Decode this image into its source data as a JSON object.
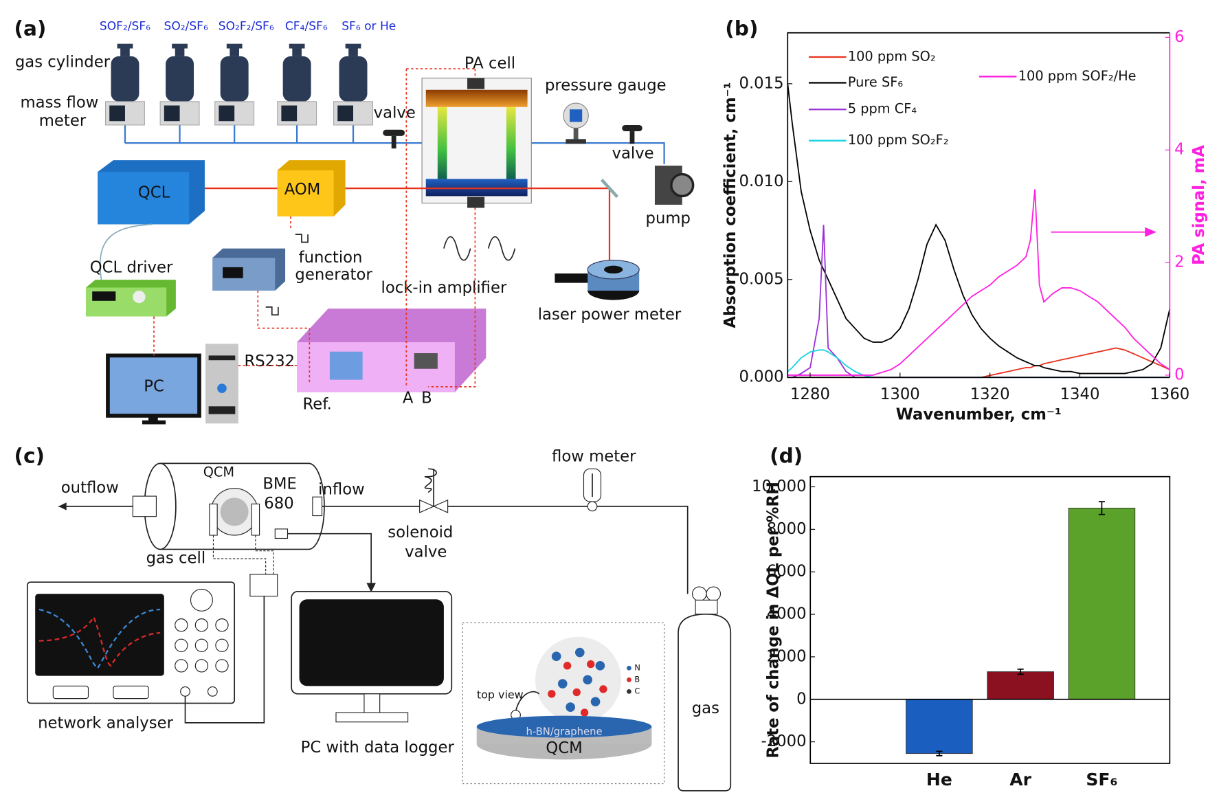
{
  "diagram_a": {
    "panel": "(a)",
    "gases": [
      "SOF₂/SF₆",
      "SO₂/SF₆",
      "SO₂F₂/SF₆",
      "CF₄/SF₆",
      "SF₆ or He"
    ],
    "gas_cylinder": "gas cylinder",
    "mass_flow_meter": [
      "mass flow",
      "meter"
    ],
    "valves": [
      "valve",
      "valve"
    ],
    "pa_cell": "PA cell",
    "pressure_gauge": "pressure gauge",
    "pump": "pump",
    "qcl": "QCL",
    "aom": "AOM",
    "qcl_driver": "QCL driver",
    "function_generator": [
      "function",
      "generator"
    ],
    "lock_in_amplifier": "lock-in amplifier",
    "laser_power_meter": "laser power meter",
    "pc": "PC",
    "rs232": "RS232",
    "ref": "Ref.",
    "a": "A",
    "b": "B"
  },
  "diagram_c": {
    "panel": "(c)",
    "outflow": "outflow",
    "inflow": "inflow",
    "qcm": "QCM",
    "bme": [
      "BME",
      "680"
    ],
    "gas_cell": "gas cell",
    "solenoid_valve": [
      "solenoid",
      "valve"
    ],
    "flow_meter": "flow meter",
    "network_analyser": "network analyser",
    "pc_logger": "PC with data logger",
    "top_view": "top view",
    "layer": "h-BN/graphene",
    "qcm_base": "QCM",
    "atoms": [
      "N",
      "B",
      "C"
    ],
    "gas": "gas"
  },
  "chart_data": [
    {
      "type": "line",
      "panel": "(b)",
      "xlabel": "Wavenumber, cm⁻¹",
      "ylabel": "Absorption coefficient, cm⁻¹",
      "y2label": "PA signal, mA",
      "x": [
        1275,
        1276,
        1278,
        1280,
        1282,
        1283,
        1284,
        1286,
        1288,
        1290,
        1292,
        1294,
        1296,
        1298,
        1300,
        1302,
        1304,
        1306,
        1308,
        1310,
        1312,
        1314,
        1316,
        1318,
        1320,
        1322,
        1324,
        1326,
        1328,
        1329,
        1330,
        1331,
        1332,
        1334,
        1336,
        1338,
        1340,
        1342,
        1344,
        1346,
        1348,
        1350,
        1352,
        1354,
        1356,
        1358,
        1360
      ],
      "xlim": [
        1275,
        1360
      ],
      "xticks": [
        1280,
        1300,
        1320,
        1340,
        1360
      ],
      "ylim": [
        0,
        0.0176
      ],
      "yticks": [
        {
          "value": 0,
          "label": "0.000"
        },
        0.005,
        {
          "value": 0.01,
          "label": "0.010"
        },
        0.015
      ],
      "y2lim": [
        -0.04,
        6.08
      ],
      "y2ticks": [
        0,
        2,
        4,
        6
      ],
      "y2color": "#ff1fe0",
      "series": [
        {
          "name": "100 ppm SO₂",
          "color": "#e8321e",
          "values": [
            0,
            0,
            0,
            0,
            0,
            0,
            0,
            0,
            0,
            0,
            0,
            0,
            0,
            0,
            0,
            0,
            0,
            0,
            0,
            0,
            0,
            0,
            0,
            0,
            0.0001,
            0.0002,
            0.0003,
            0.0004,
            0.0005,
            0.0005,
            0.0006,
            0.0006,
            0.0007,
            0.0008,
            0.0009,
            0.001,
            0.0011,
            0.0012,
            0.0013,
            0.0014,
            0.0015,
            0.0014,
            0.0012,
            0.001,
            0.0008,
            0.0006,
            0.0004
          ]
        },
        {
          "name": "Pure SF₆",
          "color": "#000000",
          "values": [
            0.015,
            0.013,
            0.0095,
            0.0075,
            0.006,
            0.0055,
            0.005,
            0.004,
            0.003,
            0.0025,
            0.002,
            0.0018,
            0.0018,
            0.002,
            0.0025,
            0.0035,
            0.005,
            0.0068,
            0.0078,
            0.007,
            0.0055,
            0.0042,
            0.0032,
            0.0025,
            0.002,
            0.0016,
            0.0013,
            0.001,
            0.0008,
            0.0007,
            0.0006,
            0.0006,
            0.0005,
            0.0004,
            0.0003,
            0.0003,
            0.0002,
            0.0002,
            0.0002,
            0.0002,
            0.0002,
            0.0002,
            0.0003,
            0.0004,
            0.0007,
            0.0015,
            0.0035
          ]
        },
        {
          "name": "5 ppm CF₄",
          "color": "#9b30d9",
          "values": [
            0,
            0,
            0.0002,
            0.0005,
            0.003,
            0.0078,
            0.0015,
            0.001,
            0.0003,
            0,
            0,
            0,
            0,
            0,
            0,
            0,
            0,
            0,
            0,
            0,
            0,
            0,
            0,
            0,
            0,
            0,
            0,
            0,
            0,
            0,
            0,
            0,
            0,
            0,
            0,
            0,
            0,
            0,
            0,
            0,
            0,
            0,
            0,
            0,
            0,
            0,
            0
          ]
        },
        {
          "name": "100 ppm SO₂F₂",
          "color": "#19d3e0",
          "values": [
            0.0003,
            0.0005,
            0.001,
            0.0013,
            0.0014,
            0.0014,
            0.0013,
            0.001,
            0.0006,
            0.0003,
            0.0001,
            0,
            0,
            0,
            0,
            0,
            0,
            0,
            0,
            0,
            0,
            0,
            0,
            0,
            0,
            0,
            0,
            0,
            0,
            0,
            0,
            0,
            0,
            0,
            0,
            0,
            0,
            0,
            0,
            0,
            0,
            0,
            0,
            0,
            0,
            0,
            0
          ]
        },
        {
          "name": "100 ppm SOF₂/He",
          "color": "#ff1fe0",
          "axis": "y2",
          "values": [
            0,
            0,
            0,
            0,
            0,
            0,
            0,
            0,
            0,
            0,
            0,
            0,
            0.05,
            0.1,
            0.2,
            0.35,
            0.5,
            0.65,
            0.8,
            0.95,
            1.1,
            1.25,
            1.4,
            1.5,
            1.6,
            1.75,
            1.85,
            1.95,
            2.1,
            2.4,
            3.3,
            1.6,
            1.3,
            1.45,
            1.55,
            1.55,
            1.5,
            1.4,
            1.3,
            1.15,
            1.0,
            0.85,
            0.65,
            0.5,
            0.35,
            0.2,
            0.1
          ]
        }
      ]
    },
    {
      "type": "bar",
      "panel": "(d)",
      "ylabel": "Rate of change in ΔQL per %RH",
      "categories": [
        "He",
        "Ar",
        "SF₆"
      ],
      "values": [
        -2550,
        1300,
        9000
      ],
      "errors": [
        100,
        120,
        300
      ],
      "colors": [
        "#1a5fbf",
        "#8b1020",
        "#5aa22a"
      ],
      "ylim": [
        -3015,
        10480
      ],
      "yticks": [
        -2000,
        0,
        2000,
        4000,
        6000,
        8000,
        {
          "value": 10000,
          "label": "10,000"
        }
      ]
    }
  ]
}
